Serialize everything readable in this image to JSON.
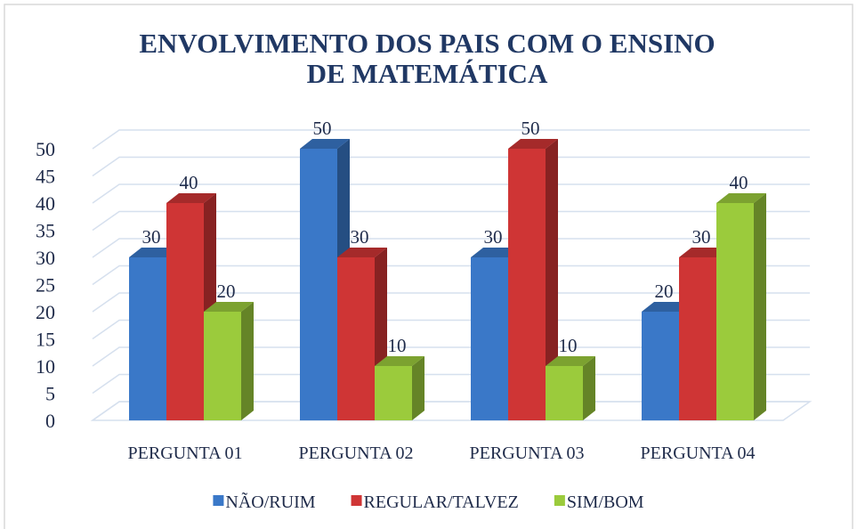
{
  "chart_data": {
    "type": "bar3d",
    "title": "ENVOLVIMENTO DOS PAIS COM O ENSINO DE MATEMÁTICA",
    "categories": [
      "PERGUNTA 01",
      "PERGUNTA 02",
      "PERGUNTA 03",
      "PERGUNTA 04"
    ],
    "series": [
      {
        "name": "NÃO/RUIM",
        "color": "#3a78c8",
        "values": [
          30,
          50,
          30,
          20
        ]
      },
      {
        "name": "REGULAR/TALVEZ",
        "color": "#cf3535",
        "values": [
          40,
          30,
          50,
          30
        ]
      },
      {
        "name": "SIM/BOM",
        "color": "#9bcb3c",
        "values": [
          20,
          10,
          10,
          40
        ]
      }
    ],
    "ylim": [
      0,
      50
    ],
    "yticks": [
      0,
      5,
      10,
      15,
      20,
      25,
      30,
      35,
      40,
      45,
      50
    ],
    "grid": true,
    "legend": "bottom"
  }
}
